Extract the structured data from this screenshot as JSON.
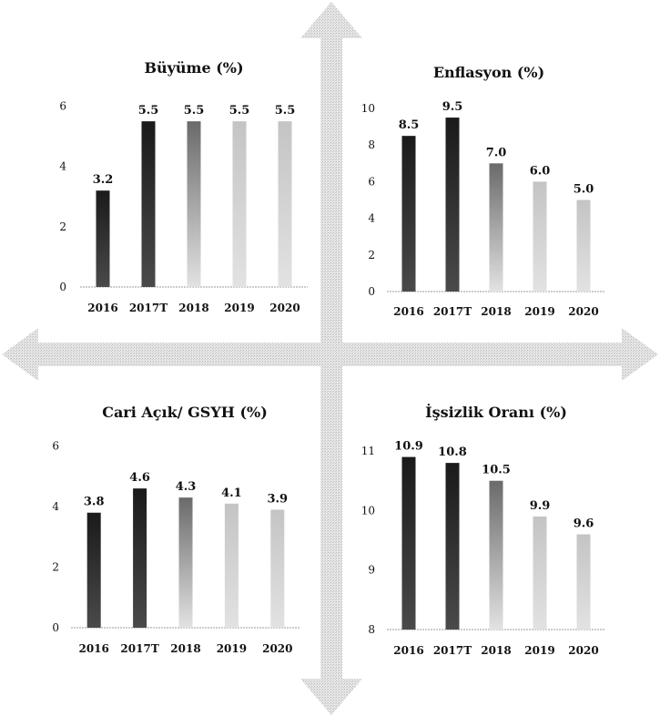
{
  "chart_data": [
    {
      "type": "bar",
      "title": "Büyüme (%)",
      "categories": [
        "2016",
        "2017T",
        "2018",
        "2019",
        "2020"
      ],
      "values": [
        3.2,
        5.5,
        5.5,
        5.5,
        5.5
      ],
      "value_labels": [
        "3.2",
        "5.5",
        "5.5",
        "5.5",
        "5.5"
      ],
      "yticks": [
        0,
        2,
        4,
        6
      ],
      "ylim": [
        0,
        6.2
      ],
      "grid": false
    },
    {
      "type": "bar",
      "title": "Enflasyon (%)",
      "categories": [
        "2016",
        "2017T",
        "2018",
        "2019",
        "2020"
      ],
      "values": [
        8.5,
        9.5,
        7.0,
        6.0,
        5.0
      ],
      "value_labels": [
        "8.5",
        "9.5",
        "7.0",
        "6.0",
        "5.0"
      ],
      "yticks": [
        0,
        2,
        4,
        6,
        8,
        10
      ],
      "ylim": [
        0,
        10.2
      ],
      "grid": false
    },
    {
      "type": "bar",
      "title": "Cari Açık/ GSYH (%)",
      "categories": [
        "2016",
        "2017T",
        "2018",
        "2019",
        "2020"
      ],
      "values": [
        3.8,
        4.6,
        4.3,
        4.1,
        3.9
      ],
      "value_labels": [
        "3.8",
        "4.6",
        "4.3",
        "4.1",
        "3.9"
      ],
      "yticks": [
        0,
        2,
        4,
        6
      ],
      "ylim": [
        0,
        6.2
      ],
      "grid": false
    },
    {
      "type": "bar",
      "title": "İşsizlik Oranı (%)",
      "categories": [
        "2016",
        "2017T",
        "2018",
        "2019",
        "2020"
      ],
      "values": [
        10.9,
        10.8,
        10.5,
        9.9,
        9.6
      ],
      "value_labels": [
        "10.9",
        "10.8",
        "10.5",
        "9.9",
        "9.6"
      ],
      "yticks": [
        8,
        9,
        10,
        11
      ],
      "ylim": [
        8,
        11.2
      ],
      "grid": false
    }
  ],
  "colors": {
    "bar_dark": "#1a1a1a",
    "bar_mid": "#6a6a6a",
    "bar_light": "#c4c4c4",
    "arrow": "#d2d2d2",
    "axis": "#9a9a9a"
  }
}
